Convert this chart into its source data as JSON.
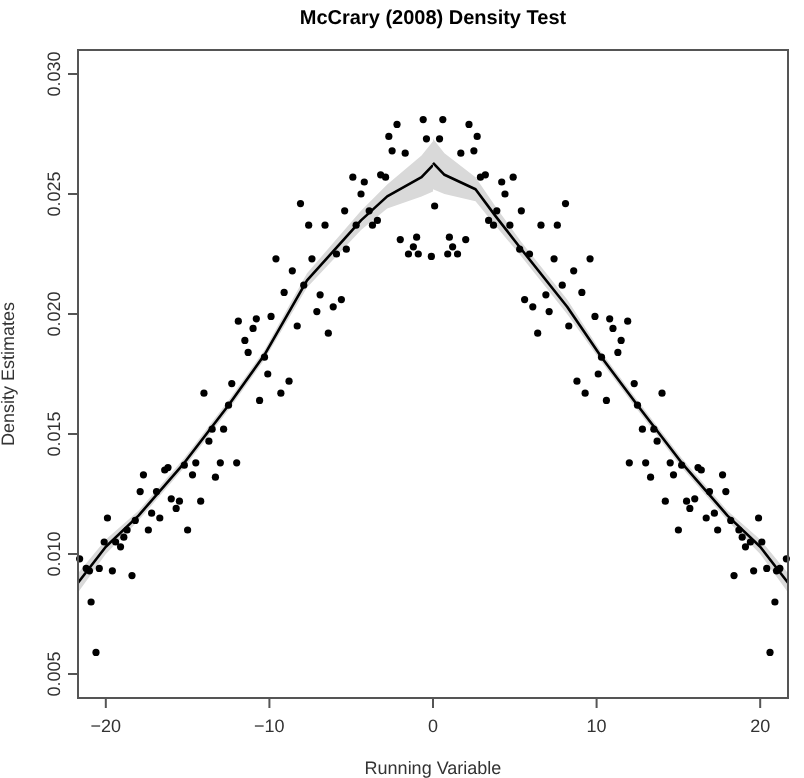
{
  "chart_data": {
    "type": "scatter",
    "title": "McCrary (2008) Density Test",
    "xlabel": "Running Variable",
    "ylabel": "Density Estimates",
    "xlim": [
      -21.7,
      21.7
    ],
    "ylim": [
      0.004,
      0.031
    ],
    "xticks": [
      {
        "value": -20,
        "label": "−20"
      },
      {
        "value": -10,
        "label": "−10"
      },
      0,
      10,
      20
    ],
    "yticks": [
      0.005,
      {
        "value": 0.01,
        "label": "0.010"
      },
      0.015,
      {
        "value": 0.02,
        "label": "0.020"
      },
      0.025,
      {
        "value": 0.03,
        "label": "0.030"
      }
    ],
    "grid": false,
    "series": [
      {
        "color": "#000000",
        "marker": "circle",
        "x": [
          -21.6,
          -21.2,
          -21.0,
          -20.9,
          -20.6,
          -20.4,
          -20.1,
          -19.9,
          -19.6,
          -19.4,
          -19.1,
          -18.9,
          -18.7,
          -18.4,
          -18.2,
          -17.9,
          -17.7,
          -17.4,
          -17.2,
          -16.9,
          -16.7,
          -16.4,
          -16.2,
          -16.0,
          -15.7,
          -15.5,
          -15.2,
          -15.0,
          -14.7,
          -14.5,
          -14.2,
          -14.0,
          -13.7,
          -13.5,
          -13.3,
          -13.0,
          -12.8,
          -12.5,
          -12.3,
          -12.0,
          -11.9,
          -11.5,
          -11.3,
          -11.0,
          -10.8,
          -10.6,
          -10.3,
          -10.1,
          -9.9,
          -9.6,
          -9.3,
          -9.1,
          -8.8,
          -8.6,
          -8.3,
          -8.1,
          -7.9,
          -7.6,
          -7.4,
          -7.1,
          -6.9,
          -6.6,
          -6.4,
          -6.1,
          -5.9,
          -5.6,
          -5.4,
          -5.3,
          -4.9,
          -4.7,
          -4.4,
          -4.2,
          -3.9,
          -3.7,
          -3.4,
          -3.2,
          -2.9,
          -2.7,
          -2.5,
          -2.2,
          -2.0,
          -1.7,
          -1.5,
          -1.2,
          -1.0,
          -0.9,
          -0.6,
          -0.4,
          -0.1,
          0.1,
          0.4,
          0.6,
          0.9,
          1.0,
          1.2,
          1.5,
          1.7,
          2.0,
          2.2,
          2.5,
          2.7,
          2.9,
          3.2,
          3.4,
          3.7,
          3.9,
          4.2,
          4.4,
          4.7,
          4.9,
          5.3,
          5.4,
          5.6,
          5.9,
          6.1,
          6.4,
          6.6,
          6.9,
          7.1,
          7.4,
          7.6,
          7.9,
          8.1,
          8.3,
          8.6,
          8.8,
          9.1,
          9.3,
          9.6,
          9.9,
          10.1,
          10.3,
          10.6,
          10.8,
          11.0,
          11.3,
          11.5,
          11.9,
          12.0,
          12.3,
          12.5,
          12.8,
          13.0,
          13.3,
          13.5,
          13.7,
          14.0,
          14.2,
          14.5,
          14.7,
          15.0,
          15.2,
          15.5,
          15.7,
          16.0,
          16.2,
          16.4,
          16.7,
          16.9,
          17.2,
          17.4,
          17.7,
          17.9,
          18.2,
          18.4,
          18.7,
          18.9,
          19.1,
          19.4,
          19.6,
          19.9,
          20.1,
          20.4,
          20.6,
          20.9,
          21.0,
          21.2,
          21.6
        ],
        "values": [
          0.0098,
          0.0094,
          0.0093,
          0.008,
          0.0059,
          0.0094,
          0.0105,
          0.0115,
          0.0093,
          0.0105,
          0.0103,
          0.0107,
          0.011,
          0.0091,
          0.0114,
          0.0126,
          0.0133,
          0.011,
          0.0117,
          0.0126,
          0.0115,
          0.0135,
          0.0136,
          0.0123,
          0.0119,
          0.0122,
          0.0137,
          0.011,
          0.0133,
          0.0138,
          0.0122,
          0.0167,
          0.0147,
          0.0152,
          0.0132,
          0.0138,
          0.0152,
          0.0162,
          0.0171,
          0.0138,
          0.0197,
          0.0189,
          0.0184,
          0.0194,
          0.0198,
          0.0164,
          0.0182,
          0.0175,
          0.0199,
          0.0223,
          0.0167,
          0.0209,
          0.0172,
          0.0218,
          0.0195,
          0.0246,
          0.0212,
          0.0237,
          0.0223,
          0.0201,
          0.0208,
          0.0237,
          0.0192,
          0.0203,
          0.0225,
          0.0206,
          0.0243,
          0.0227,
          0.0257,
          0.0237,
          0.025,
          0.0255,
          0.0243,
          0.0237,
          0.0239,
          0.0258,
          0.0257,
          0.0274,
          0.0268,
          0.0279,
          0.0231,
          0.0267,
          0.0225,
          0.0228,
          0.0232,
          0.0225,
          0.0281,
          0.0273,
          0.0224,
          0.0245,
          0.0273,
          0.0281,
          0.0225,
          0.0232,
          0.0228,
          0.0225,
          0.0267,
          0.0231,
          0.0279,
          0.0268,
          0.0274,
          0.0257,
          0.0258,
          0.0239,
          0.0237,
          0.0243,
          0.0255,
          0.025,
          0.0237,
          0.0257,
          0.0227,
          0.0243,
          0.0206,
          0.0225,
          0.0203,
          0.0192,
          0.0237,
          0.0208,
          0.0201,
          0.0223,
          0.0237,
          0.0212,
          0.0246,
          0.0195,
          0.0218,
          0.0172,
          0.0209,
          0.0167,
          0.0223,
          0.0199,
          0.0175,
          0.0182,
          0.0164,
          0.0198,
          0.0194,
          0.0184,
          0.0189,
          0.0197,
          0.0138,
          0.0171,
          0.0162,
          0.0152,
          0.0138,
          0.0132,
          0.0152,
          0.0147,
          0.0167,
          0.0122,
          0.0138,
          0.0133,
          0.011,
          0.0137,
          0.0122,
          0.0119,
          0.0123,
          0.0136,
          0.0135,
          0.0115,
          0.0126,
          0.0117,
          0.011,
          0.0133,
          0.0126,
          0.0114,
          0.0091,
          0.011,
          0.0107,
          0.0103,
          0.0105,
          0.0093,
          0.0115,
          0.0105,
          0.0094,
          0.0059,
          0.008,
          0.0093,
          0.0094,
          0.0098
        ]
      },
      {
        "type": "line",
        "color": "#000000",
        "line_style": "solid",
        "x": [
          -21.7,
          -20,
          -18,
          -15.2,
          -12.5,
          -10.3,
          -7.7,
          -4.4,
          -2.8,
          -0.7,
          0
        ],
        "values": [
          0.0088,
          0.0103,
          0.0116,
          0.0138,
          0.0162,
          0.0183,
          0.0214,
          0.0239,
          0.0249,
          0.0257,
          0.0262
        ],
        "lower": [
          0.0084,
          0.01,
          0.0114,
          0.0136,
          0.016,
          0.0181,
          0.0211,
          0.0235,
          0.0244,
          0.0249,
          0.0251
        ],
        "upper": [
          0.0092,
          0.0106,
          0.0118,
          0.014,
          0.0164,
          0.0185,
          0.0217,
          0.0243,
          0.0254,
          0.0266,
          0.0272
        ]
      },
      {
        "type": "line",
        "color": "#000000",
        "line_style": "solid",
        "x": [
          0,
          0.7,
          2.6,
          3.8,
          5.4,
          8.2,
          10.3,
          12.5,
          15.2,
          18,
          20,
          21.7
        ],
        "values": [
          0.0263,
          0.0258,
          0.0252,
          0.0241,
          0.0227,
          0.0203,
          0.0182,
          0.0162,
          0.0138,
          0.0116,
          0.0103,
          0.0088
        ],
        "lower": [
          0.0252,
          0.025,
          0.0247,
          0.0237,
          0.0224,
          0.02,
          0.018,
          0.016,
          0.0136,
          0.0114,
          0.01,
          0.0084
        ],
        "upper": [
          0.0273,
          0.0267,
          0.0257,
          0.0245,
          0.023,
          0.0206,
          0.0184,
          0.0164,
          0.014,
          0.0118,
          0.0106,
          0.0092
        ]
      }
    ]
  }
}
